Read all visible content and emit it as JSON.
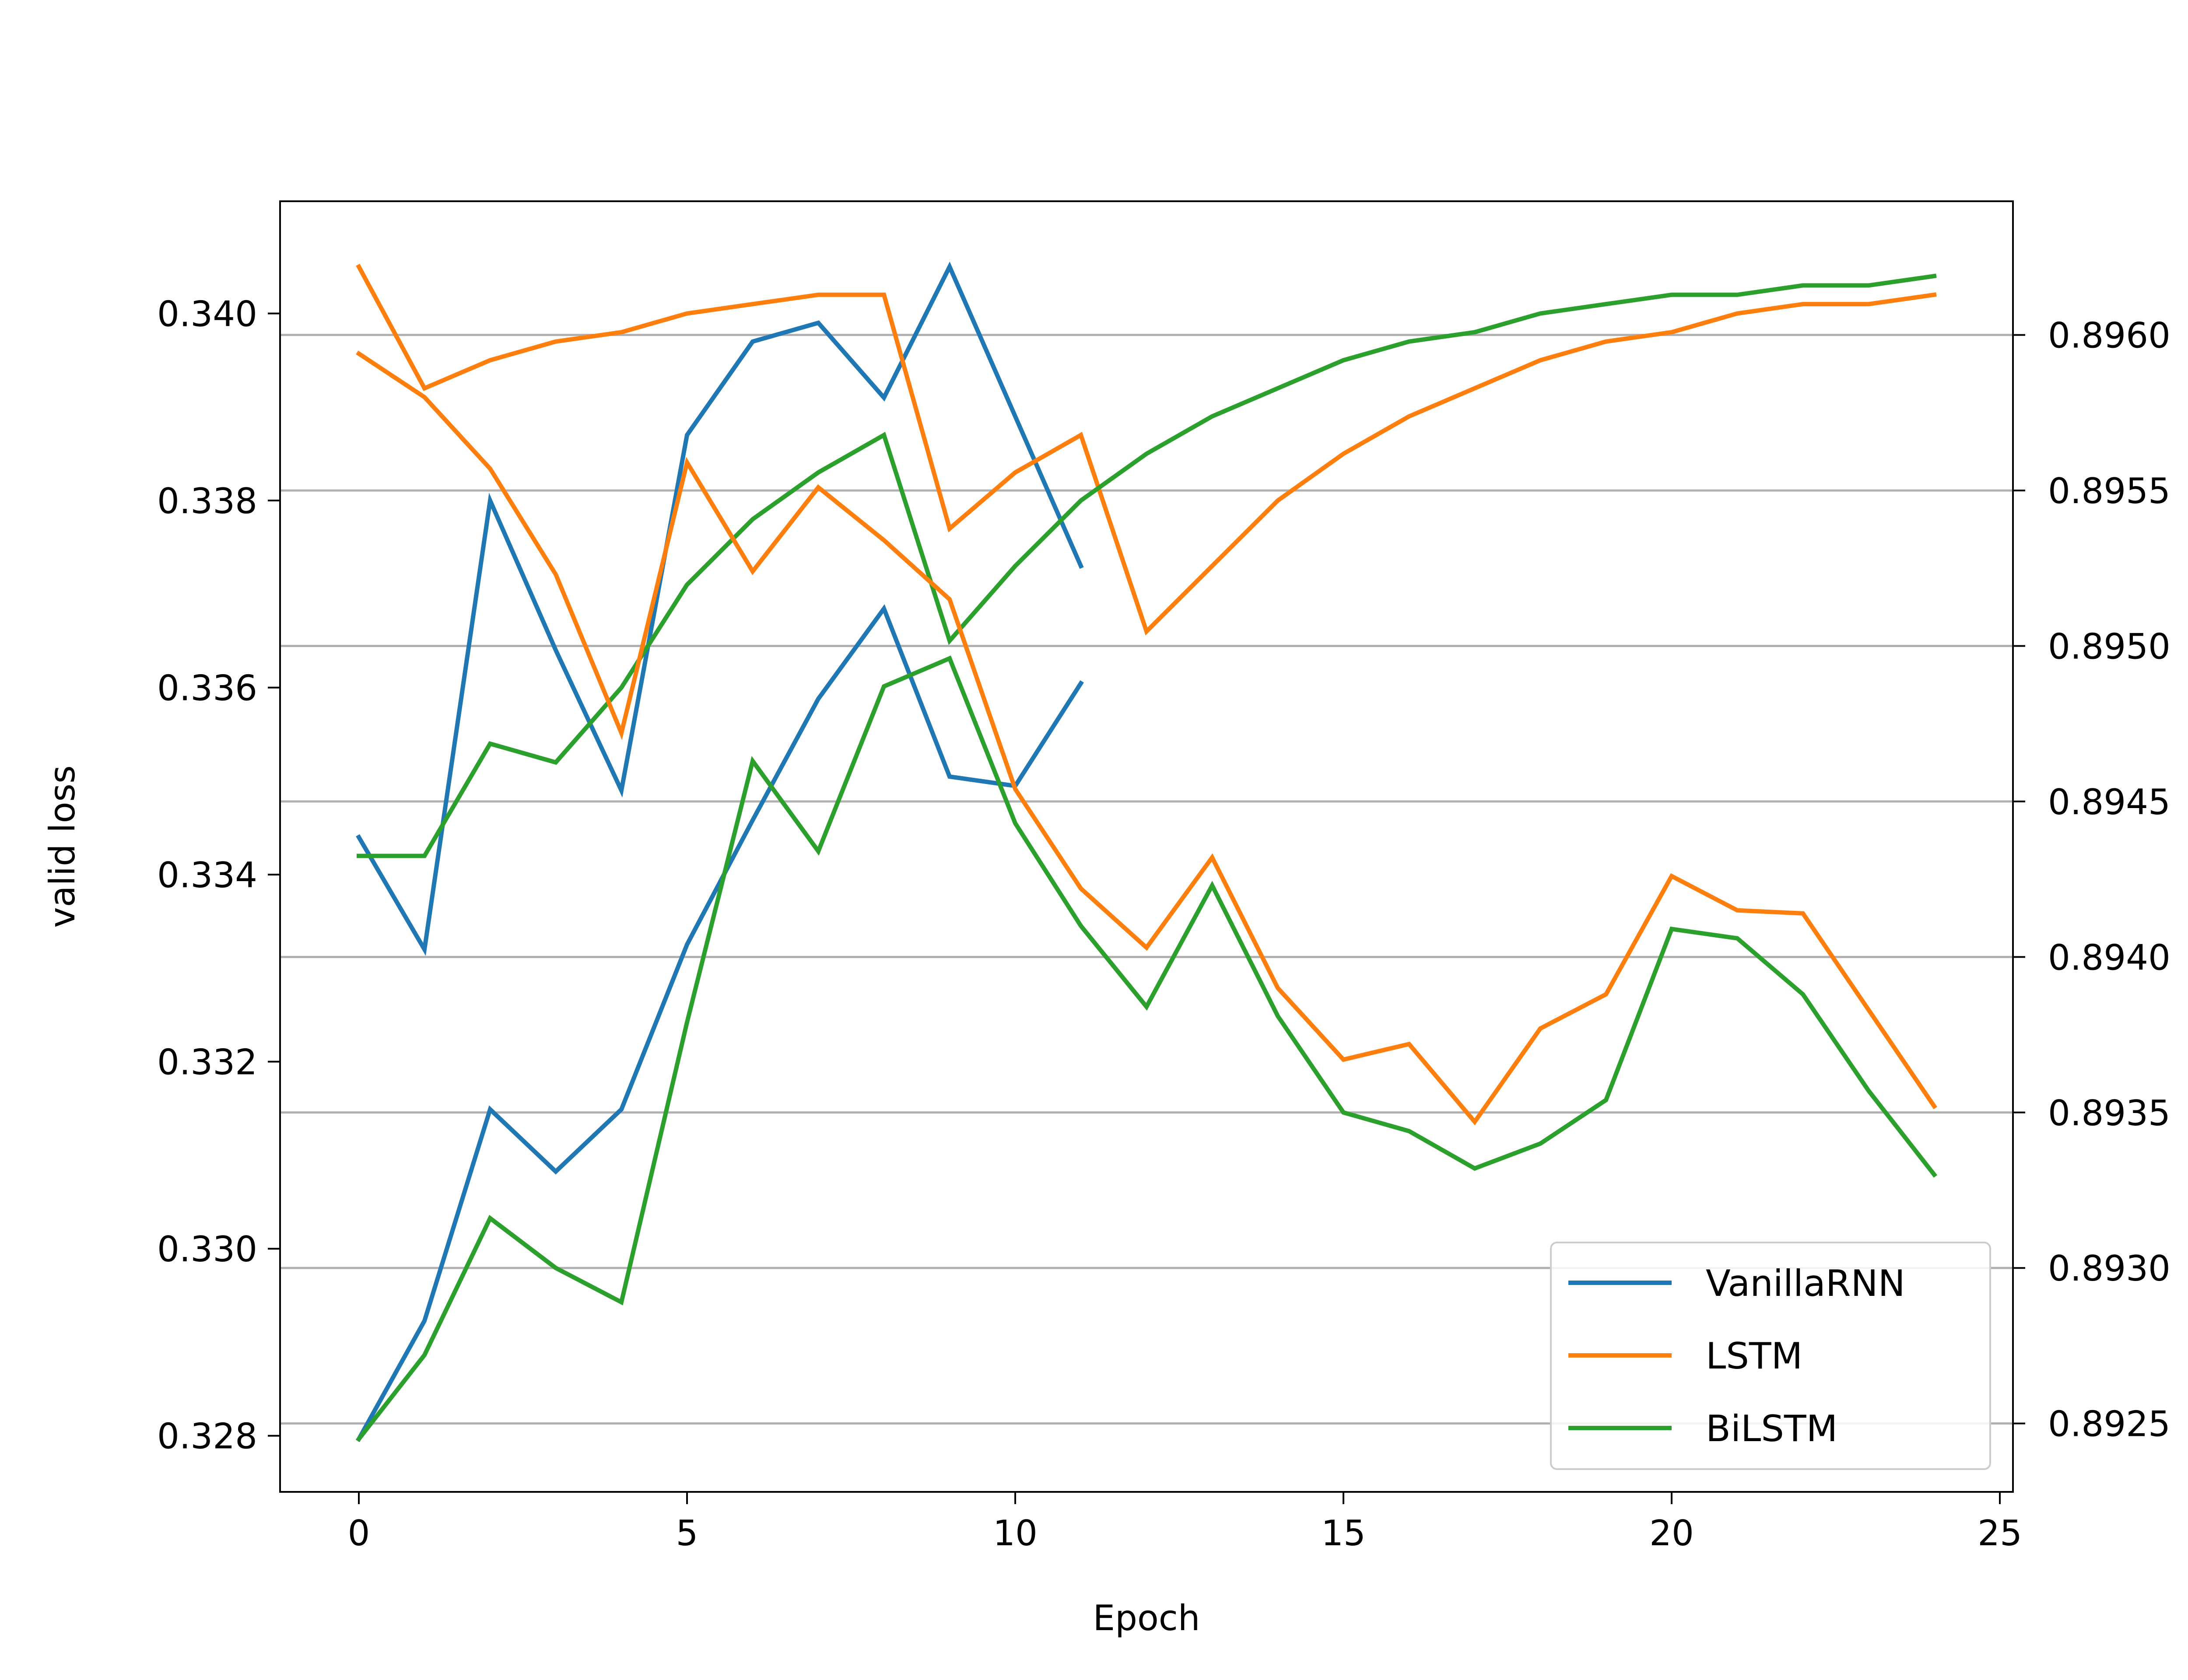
{
  "chart_data": {
    "type": "line",
    "title": "",
    "xlabel": "Epoch",
    "ylabel_left": "valid loss",
    "ylabel_right": "",
    "xlim": [
      -1.2,
      25.2
    ],
    "ylim_left": [
      0.3274,
      0.3412
    ],
    "ylim_right": [
      0.89228,
      0.89643
    ],
    "xticks": [
      0,
      5,
      10,
      15,
      20,
      25
    ],
    "xtick_labels": [
      "0",
      "5",
      "10",
      "15",
      "20",
      "25"
    ],
    "yticks_left": [
      0.328,
      0.33,
      0.332,
      0.334,
      0.336,
      0.338,
      0.34
    ],
    "ytick_labels_left": [
      "0.328",
      "0.330",
      "0.332",
      "0.334",
      "0.336",
      "0.338",
      "0.340"
    ],
    "yticks_right": [
      0.8925,
      0.893,
      0.8935,
      0.894,
      0.8945,
      0.895,
      0.8955,
      0.896
    ],
    "ytick_labels_right": [
      "0.8925",
      "0.8930",
      "0.8935",
      "0.8940",
      "0.8945",
      "0.8950",
      "0.8955",
      "0.8960"
    ],
    "grid": "horizontal gridlines at right-axis ticks",
    "legend": {
      "position": "lower-right",
      "entries": [
        "VanillaRNN",
        "LSTM",
        "BiLSTM"
      ]
    },
    "series": [
      {
        "name": "VanillaRNN",
        "axis": "left",
        "color": "#1f77b4",
        "x": [
          0,
          1,
          2,
          3,
          4,
          5,
          6,
          7,
          8,
          9,
          10,
          11
        ],
        "values": [
          0.3344,
          0.3332,
          0.338,
          0.3364,
          0.3349,
          0.3387,
          0.3397,
          0.3399,
          0.3391,
          0.3405,
          0.3389,
          0.3373
        ]
      },
      {
        "name": "LSTM",
        "axis": "left",
        "color": "#ff7f0e",
        "x": [
          0,
          1,
          2,
          3,
          4,
          5,
          6,
          7,
          8,
          9,
          10,
          11,
          12,
          13,
          14,
          15,
          16,
          17,
          18,
          19,
          20,
          21,
          22,
          23,
          24
        ],
        "values": [
          0.3405,
          0.3392,
          0.3395,
          0.3397,
          0.3398,
          0.34,
          0.3401,
          0.3402,
          0.3402,
          0.3377,
          0.3383,
          0.3387,
          0.3366,
          0.3373,
          0.338,
          0.3385,
          0.3389,
          0.3392,
          0.3395,
          0.3397,
          0.3398,
          0.34,
          0.3401,
          0.3401,
          0.3402
        ]
      },
      {
        "name": "BiLSTM",
        "axis": "left",
        "color": "#2ca02c",
        "x": [
          0,
          1,
          2,
          3,
          4,
          5,
          6,
          7,
          8,
          9,
          10,
          11,
          12,
          13,
          14,
          15,
          16,
          17,
          18,
          19,
          20,
          21,
          22,
          23,
          24
        ],
        "values": [
          0.3342,
          0.3342,
          0.3354,
          0.3352,
          0.336,
          0.3371,
          0.3378,
          0.3383,
          0.3387,
          0.3365,
          0.3373,
          0.338,
          0.3385,
          0.3389,
          0.3392,
          0.3395,
          0.3397,
          0.3398,
          0.34,
          0.3401,
          0.3402,
          0.3402,
          0.3403,
          0.3403,
          0.3404
        ]
      },
      {
        "name": "VanillaRNN",
        "axis": "right",
        "color": "#1f77b4",
        "x": [
          0,
          1,
          2,
          3,
          4,
          5,
          6,
          7,
          8,
          9,
          10,
          11
        ],
        "values": [
          0.89245,
          0.89283,
          0.89351,
          0.89331,
          0.89351,
          0.89404,
          0.89444,
          0.89483,
          0.89512,
          0.89458,
          0.89455,
          0.89488
        ]
      },
      {
        "name": "LSTM",
        "axis": "right",
        "color": "#ff7f0e",
        "x": [
          0,
          1,
          2,
          3,
          4,
          5,
          6,
          7,
          8,
          9,
          10,
          11,
          12,
          13,
          14,
          15,
          16,
          17,
          18,
          19,
          20,
          21,
          22,
          23,
          24
        ],
        "values": [
          0.89594,
          0.8958,
          0.89557,
          0.89523,
          0.89472,
          0.89559,
          0.89524,
          0.89551,
          0.89534,
          0.89515,
          0.89454,
          0.89422,
          0.89403,
          0.89432,
          0.8939,
          0.89367,
          0.89372,
          0.89347,
          0.89377,
          0.89388,
          0.89426,
          0.89415,
          0.89414,
          0.89383,
          0.89352
        ]
      },
      {
        "name": "BiLSTM",
        "axis": "right",
        "color": "#2ca02c",
        "x": [
          0,
          1,
          2,
          3,
          4,
          5,
          6,
          7,
          8,
          9,
          10,
          11,
          12,
          13,
          14,
          15,
          16,
          17,
          18,
          19,
          20,
          21,
          22,
          23,
          24
        ],
        "values": [
          0.89245,
          0.89272,
          0.89316,
          0.893,
          0.89289,
          0.89379,
          0.89463,
          0.89434,
          0.89487,
          0.89496,
          0.89443,
          0.8941,
          0.89384,
          0.89423,
          0.89381,
          0.8935,
          0.89344,
          0.89332,
          0.8934,
          0.89354,
          0.89409,
          0.89406,
          0.89388,
          0.89357,
          0.8933
        ]
      }
    ]
  }
}
